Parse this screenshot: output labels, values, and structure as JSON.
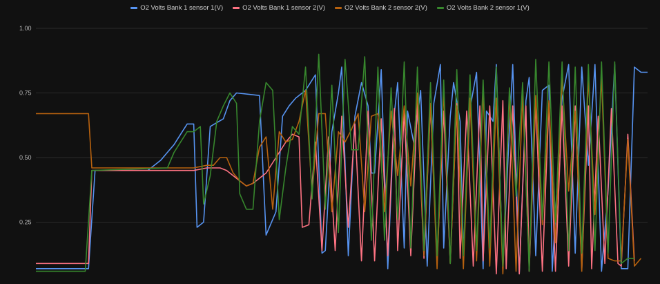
{
  "chart_data": {
    "type": "line",
    "y_ticks": [
      "1.00",
      "0.75",
      "0.50",
      "0.25"
    ],
    "ylim": [
      0.0,
      1.05
    ],
    "grid": true,
    "legend_position": "top",
    "series": [
      {
        "name": "O2 Volts Bank 1 sensor 1(V)",
        "color": "#5794f2",
        "points": [
          [
            0,
            0.07
          ],
          [
            8,
            0.07
          ],
          [
            9,
            0.45
          ],
          [
            17,
            0.45
          ],
          [
            18,
            0.47
          ],
          [
            19,
            0.49
          ],
          [
            20,
            0.52
          ],
          [
            21,
            0.55
          ],
          [
            22,
            0.59
          ],
          [
            23,
            0.63
          ],
          [
            24,
            0.63
          ],
          [
            24.5,
            0.23
          ],
          [
            25.5,
            0.25
          ],
          [
            26.5,
            0.62
          ],
          [
            28.5,
            0.65
          ],
          [
            29.5,
            0.72
          ],
          [
            30.5,
            0.75
          ],
          [
            34,
            0.74
          ],
          [
            35,
            0.2
          ],
          [
            36.5,
            0.29
          ],
          [
            37.5,
            0.66
          ],
          [
            38.5,
            0.7
          ],
          [
            39.5,
            0.73
          ],
          [
            41,
            0.76
          ],
          [
            42,
            0.8
          ],
          [
            42.5,
            0.82
          ],
          [
            43.5,
            0.13
          ],
          [
            44,
            0.14
          ],
          [
            45,
            0.6
          ],
          [
            46,
            0.75
          ],
          [
            46.5,
            0.85
          ],
          [
            47.5,
            0.12
          ],
          [
            48.5,
            0.66
          ],
          [
            49.5,
            0.79
          ],
          [
            50.5,
            0.7
          ],
          [
            51,
            0.44
          ],
          [
            51.5,
            0.44
          ],
          [
            52.5,
            0.84
          ],
          [
            53.5,
            0.07
          ],
          [
            54.5,
            0.67
          ],
          [
            55,
            0.79
          ],
          [
            56,
            0.15
          ],
          [
            56.5,
            0.68
          ],
          [
            57.5,
            0.55
          ],
          [
            58.5,
            0.76
          ],
          [
            59.5,
            0.08
          ],
          [
            60.5,
            0.71
          ],
          [
            61.5,
            0.86
          ],
          [
            62,
            0.15
          ],
          [
            63,
            0.66
          ],
          [
            63.5,
            0.79
          ],
          [
            64.5,
            0.64
          ],
          [
            65,
            0.13
          ],
          [
            66,
            0.69
          ],
          [
            67,
            0.83
          ],
          [
            68,
            0.07
          ],
          [
            68.5,
            0.68
          ],
          [
            69.5,
            0.64
          ],
          [
            70,
            0.86
          ],
          [
            71,
            0.07
          ],
          [
            72,
            0.61
          ],
          [
            72.5,
            0.86
          ],
          [
            73.5,
            0.05
          ],
          [
            74.5,
            0.72
          ],
          [
            75,
            0.81
          ],
          [
            76,
            0.12
          ],
          [
            77,
            0.76
          ],
          [
            78,
            0.78
          ],
          [
            78.5,
            0.06
          ],
          [
            80,
            0.73
          ],
          [
            81,
            0.86
          ],
          [
            82,
            0.13
          ],
          [
            83,
            0.85
          ],
          [
            84,
            0.47
          ],
          [
            85,
            0.86
          ],
          [
            86,
            0.06
          ],
          [
            87,
            0.37
          ],
          [
            88,
            0.86
          ],
          [
            89,
            0.07
          ],
          [
            90,
            0.07
          ],
          [
            91,
            0.85
          ],
          [
            92,
            0.83
          ],
          [
            93,
            0.83
          ]
        ]
      },
      {
        "name": "O2 Volts Bank 1 sensor 2(V)",
        "color": "#ff7383",
        "points": [
          [
            0,
            0.09
          ],
          [
            8,
            0.09
          ],
          [
            8.5,
            0.45
          ],
          [
            24,
            0.45
          ],
          [
            26,
            0.46
          ],
          [
            28,
            0.46
          ],
          [
            29,
            0.45
          ],
          [
            30,
            0.43
          ],
          [
            31,
            0.41
          ],
          [
            32,
            0.39
          ],
          [
            33,
            0.4
          ],
          [
            34,
            0.42
          ],
          [
            35,
            0.44
          ],
          [
            36,
            0.48
          ],
          [
            37,
            0.52
          ],
          [
            38,
            0.56
          ],
          [
            39,
            0.59
          ],
          [
            40,
            0.58
          ],
          [
            40.5,
            0.23
          ],
          [
            41.5,
            0.24
          ],
          [
            42.5,
            0.56
          ],
          [
            43.5,
            0.14
          ],
          [
            44.5,
            0.58
          ],
          [
            45.5,
            0.14
          ],
          [
            46.5,
            0.66
          ],
          [
            47.5,
            0.23
          ],
          [
            48.5,
            0.63
          ],
          [
            49.5,
            0.1
          ],
          [
            50.5,
            0.68
          ],
          [
            51.5,
            0.1
          ],
          [
            52.5,
            0.65
          ],
          [
            53.5,
            0.12
          ],
          [
            54.5,
            0.69
          ],
          [
            55,
            0.14
          ],
          [
            56,
            0.68
          ],
          [
            57,
            0.12
          ],
          [
            58,
            0.71
          ],
          [
            59,
            0.11
          ],
          [
            60,
            0.7
          ],
          [
            61,
            0.1
          ],
          [
            62,
            0.68
          ],
          [
            63,
            0.09
          ],
          [
            64,
            0.71
          ],
          [
            64.5,
            0.11
          ],
          [
            65.5,
            0.68
          ],
          [
            66.5,
            0.08
          ],
          [
            67.5,
            0.7
          ],
          [
            68,
            0.1
          ],
          [
            69,
            0.7
          ],
          [
            70,
            0.05
          ],
          [
            71,
            0.72
          ],
          [
            71.5,
            0.07
          ],
          [
            72.5,
            0.7
          ],
          [
            73.5,
            0.05
          ],
          [
            74.5,
            0.7
          ],
          [
            75,
            0.06
          ],
          [
            76,
            0.71
          ],
          [
            77,
            0.06
          ],
          [
            78,
            0.71
          ],
          [
            79,
            0.06
          ],
          [
            80,
            0.7
          ],
          [
            81,
            0.08
          ],
          [
            82,
            0.7
          ],
          [
            83,
            0.07
          ],
          [
            84,
            0.7
          ],
          [
            84.5,
            0.07
          ],
          [
            85.5,
            0.66
          ],
          [
            86.5,
            0.09
          ],
          [
            87.5,
            0.69
          ],
          [
            88.5,
            0.09
          ],
          [
            89,
            0.08
          ],
          [
            90,
            0.59
          ],
          [
            91,
            0.1
          ]
        ]
      },
      {
        "name": "O2 Volts Bank 2 sensor 2(V)",
        "color": "#b8620f",
        "points": [
          [
            0,
            0.67
          ],
          [
            8,
            0.67
          ],
          [
            8.5,
            0.46
          ],
          [
            24,
            0.46
          ],
          [
            26,
            0.47
          ],
          [
            27,
            0.47
          ],
          [
            28,
            0.5
          ],
          [
            29,
            0.5
          ],
          [
            30,
            0.44
          ],
          [
            31,
            0.41
          ],
          [
            32,
            0.39
          ],
          [
            33,
            0.4
          ],
          [
            34,
            0.54
          ],
          [
            35,
            0.58
          ],
          [
            36,
            0.3
          ],
          [
            37,
            0.6
          ],
          [
            38,
            0.56
          ],
          [
            39,
            0.57
          ],
          [
            40,
            0.64
          ],
          [
            41,
            0.76
          ],
          [
            42,
            0.36
          ],
          [
            43,
            0.67
          ],
          [
            44,
            0.67
          ],
          [
            45,
            0.29
          ],
          [
            46,
            0.6
          ],
          [
            47,
            0.56
          ],
          [
            48,
            0.61
          ],
          [
            49,
            0.67
          ],
          [
            50,
            0.29
          ],
          [
            51,
            0.66
          ],
          [
            52,
            0.67
          ],
          [
            53,
            0.29
          ],
          [
            54,
            0.68
          ],
          [
            55,
            0.43
          ],
          [
            56,
            0.7
          ],
          [
            57,
            0.39
          ],
          [
            58,
            0.75
          ],
          [
            59,
            0.12
          ],
          [
            60,
            0.71
          ],
          [
            61,
            0.07
          ],
          [
            62,
            0.76
          ],
          [
            63,
            0.09
          ],
          [
            64,
            0.7
          ],
          [
            65,
            0.07
          ],
          [
            66,
            0.73
          ],
          [
            67,
            0.1
          ],
          [
            68,
            0.76
          ],
          [
            69,
            0.08
          ],
          [
            70,
            0.73
          ],
          [
            71,
            0.05
          ],
          [
            72,
            0.75
          ],
          [
            73,
            0.06
          ],
          [
            74,
            0.74
          ],
          [
            75,
            0.08
          ],
          [
            76,
            0.74
          ],
          [
            77,
            0.24
          ],
          [
            78,
            0.72
          ],
          [
            79,
            0.17
          ],
          [
            80,
            0.81
          ],
          [
            81,
            0.37
          ],
          [
            82,
            0.68
          ],
          [
            83,
            0.06
          ],
          [
            84,
            0.81
          ],
          [
            85,
            0.28
          ],
          [
            86,
            0.81
          ],
          [
            87,
            0.11
          ],
          [
            88,
            0.1
          ],
          [
            89,
            0.1
          ],
          [
            90,
            0.57
          ],
          [
            91,
            0.08
          ],
          [
            92,
            0.11
          ]
        ]
      },
      {
        "name": "O2 Volts Bank 2 sensor 1(V)",
        "color": "#37872d",
        "points": [
          [
            0,
            0.06
          ],
          [
            7.5,
            0.06
          ],
          [
            8.5,
            0.45
          ],
          [
            20,
            0.46
          ],
          [
            21,
            0.52
          ],
          [
            22,
            0.56
          ],
          [
            23,
            0.6
          ],
          [
            24,
            0.6
          ],
          [
            25,
            0.62
          ],
          [
            25.5,
            0.32
          ],
          [
            26.5,
            0.43
          ],
          [
            27.5,
            0.64
          ],
          [
            28.5,
            0.7
          ],
          [
            29.5,
            0.75
          ],
          [
            30.5,
            0.71
          ],
          [
            31,
            0.36
          ],
          [
            32,
            0.3
          ],
          [
            33,
            0.3
          ],
          [
            34,
            0.64
          ],
          [
            35,
            0.79
          ],
          [
            36,
            0.76
          ],
          [
            37,
            0.26
          ],
          [
            38,
            0.46
          ],
          [
            39,
            0.62
          ],
          [
            40,
            0.59
          ],
          [
            41,
            0.85
          ],
          [
            42,
            0.34
          ],
          [
            43,
            0.9
          ],
          [
            44,
            0.3
          ],
          [
            45,
            0.78
          ],
          [
            46,
            0.21
          ],
          [
            47,
            0.88
          ],
          [
            48,
            0.53
          ],
          [
            49,
            0.53
          ],
          [
            50,
            0.89
          ],
          [
            51,
            0.18
          ],
          [
            52,
            0.85
          ],
          [
            53,
            0.18
          ],
          [
            54,
            0.77
          ],
          [
            55,
            0.26
          ],
          [
            56,
            0.87
          ],
          [
            57,
            0.15
          ],
          [
            58,
            0.85
          ],
          [
            59,
            0.14
          ],
          [
            60,
            0.79
          ],
          [
            61,
            0.12
          ],
          [
            62,
            0.8
          ],
          [
            63,
            0.09
          ],
          [
            64,
            0.84
          ],
          [
            65,
            0.12
          ],
          [
            66,
            0.82
          ],
          [
            67,
            0.14
          ],
          [
            68,
            0.8
          ],
          [
            69,
            0.15
          ],
          [
            70,
            0.85
          ],
          [
            71,
            0.08
          ],
          [
            72,
            0.77
          ],
          [
            73,
            0.35
          ],
          [
            74,
            0.79
          ],
          [
            75,
            0.06
          ],
          [
            76,
            0.88
          ],
          [
            77,
            0.26
          ],
          [
            78,
            0.87
          ],
          [
            79,
            0.25
          ],
          [
            80,
            0.87
          ],
          [
            81,
            0.14
          ],
          [
            82,
            0.85
          ],
          [
            83,
            0.13
          ],
          [
            84,
            0.86
          ],
          [
            85,
            0.14
          ],
          [
            86,
            0.87
          ],
          [
            87,
            0.13
          ],
          [
            88,
            0.87
          ],
          [
            89,
            0.09
          ],
          [
            90,
            0.11
          ],
          [
            91,
            0.11
          ]
        ]
      }
    ]
  }
}
